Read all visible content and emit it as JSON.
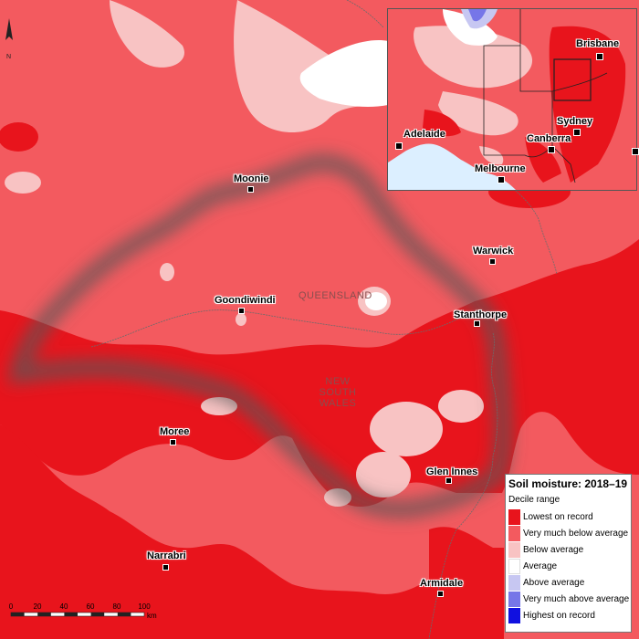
{
  "map": {
    "state_labels": {
      "queensland": "QUEENSLAND",
      "nsw_line1": "NEW",
      "nsw_line2": "SOUTH",
      "nsw_line3": "WALES"
    },
    "towns": {
      "moonie": "Moonie",
      "warwick": "Warwick",
      "goondiwindi": "Goondiwindi",
      "stanthorpe": "Stanthorpe",
      "moree": "Moree",
      "glen_innes": "Glen Innes",
      "narrabri": "Narrabri",
      "armidale": "Armidale"
    },
    "north_arrow_label": "N"
  },
  "inset": {
    "cities": {
      "brisbane": "Brisbane",
      "sydney": "Sydney",
      "canberra": "Canberra",
      "adelaide": "Adelaide",
      "melbourne": "Melbourne"
    }
  },
  "legend": {
    "title": "Soil moisture: 2018–19",
    "subtitle": "Decile range",
    "items": [
      {
        "label": "Lowest on record",
        "color": "#e8141c"
      },
      {
        "label": "Very much below average",
        "color": "#f35a5f"
      },
      {
        "label": "Below average",
        "color": "#f8c3c3"
      },
      {
        "label": "Average",
        "color": "#ffffff"
      },
      {
        "label": "Above average",
        "color": "#c7c7f2"
      },
      {
        "label": "Very much above average",
        "color": "#7676e8"
      },
      {
        "label": "Highest on record",
        "color": "#1010e0"
      }
    ]
  },
  "scale_bar": {
    "ticks": [
      "0",
      "20",
      "40",
      "60",
      "80",
      "100"
    ],
    "unit": "km"
  },
  "colors": {
    "lowest": "#e8141c",
    "very_much_below": "#f35a5f",
    "below": "#f8c3c3",
    "average": "#ffffff",
    "sea": "#dcefff"
  }
}
